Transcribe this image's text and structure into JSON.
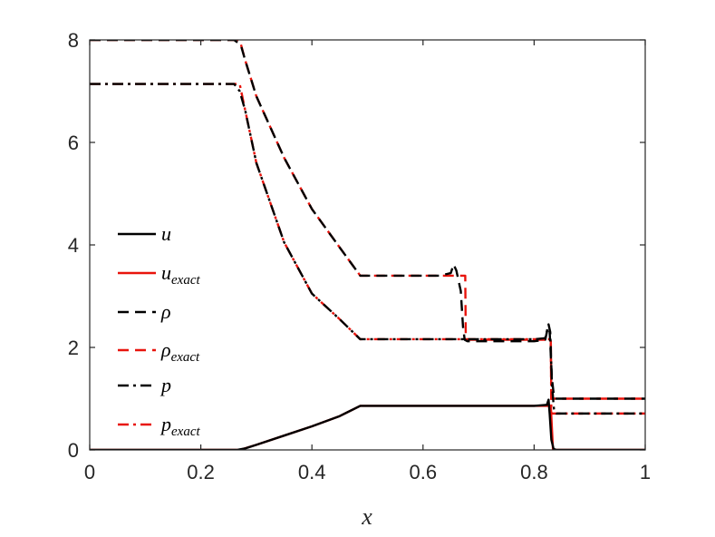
{
  "chart_data": {
    "type": "line",
    "title": "",
    "xlabel": "x",
    "ylabel": "",
    "xlim": [
      0,
      1
    ],
    "ylim": [
      0,
      8
    ],
    "xticks": [
      0,
      0.2,
      0.4,
      0.6,
      0.8,
      1
    ],
    "xtick_labels": [
      "0",
      "0.2",
      "0.4",
      "0.6",
      "0.8",
      "1"
    ],
    "yticks": [
      0,
      2,
      4,
      6,
      8
    ],
    "ytick_labels": [
      "0",
      "2",
      "4",
      "6",
      "8"
    ],
    "grid": false,
    "legend_position": "center-left",
    "series": [
      {
        "name": "u",
        "subscript": "",
        "color": "#000000",
        "dash": "solid",
        "x": [
          0,
          0.265,
          0.27,
          0.28,
          0.3,
          0.35,
          0.4,
          0.45,
          0.487,
          0.5,
          0.6,
          0.7,
          0.8,
          0.823,
          0.826,
          0.828,
          0.831,
          0.835,
          0.84,
          1
        ],
        "y": [
          0,
          0,
          0.01,
          0.03,
          0.1,
          0.28,
          0.46,
          0.66,
          0.86,
          0.86,
          0.86,
          0.86,
          0.86,
          0.88,
          0.98,
          0.7,
          0.2,
          0.02,
          0,
          0
        ]
      },
      {
        "name": "u",
        "subscript": "exact",
        "color": "#e8140c",
        "dash": "solid",
        "x": [
          0,
          0.27,
          0.3,
          0.35,
          0.4,
          0.45,
          0.487,
          0.6,
          0.7,
          0.8,
          0.83,
          0.834,
          1
        ],
        "y": [
          0,
          0,
          0.1,
          0.28,
          0.46,
          0.66,
          0.86,
          0.86,
          0.86,
          0.86,
          0.86,
          0,
          0
        ]
      },
      {
        "name": "ρ",
        "subscript": "",
        "color": "#000000",
        "dash": "dash",
        "x": [
          0,
          0.26,
          0.272,
          0.28,
          0.3,
          0.35,
          0.4,
          0.45,
          0.487,
          0.55,
          0.63,
          0.65,
          0.655,
          0.66,
          0.668,
          0.672,
          0.675,
          0.68,
          0.72,
          0.8,
          0.82,
          0.825,
          0.828,
          0.832,
          0.836,
          0.84,
          1
        ],
        "y": [
          8,
          8,
          7.9,
          7.6,
          6.9,
          5.7,
          4.7,
          3.95,
          3.4,
          3.4,
          3.4,
          3.45,
          3.62,
          3.5,
          3.1,
          2.4,
          2.15,
          2.12,
          2.12,
          2.12,
          2.15,
          2.4,
          2.3,
          1.4,
          1.02,
          1.0,
          1.0
        ]
      },
      {
        "name": "ρ",
        "subscript": "exact",
        "color": "#e8140c",
        "dash": "dash",
        "x": [
          0,
          0.27,
          0.28,
          0.3,
          0.35,
          0.4,
          0.45,
          0.487,
          0.6,
          0.676,
          0.677,
          0.8,
          0.83,
          0.831,
          1
        ],
        "y": [
          8,
          8,
          7.6,
          6.9,
          5.7,
          4.7,
          3.95,
          3.4,
          3.4,
          3.4,
          2.15,
          2.15,
          2.15,
          1.0,
          1.0
        ]
      },
      {
        "name": "p",
        "subscript": "",
        "color": "#000000",
        "dash": "dashdot",
        "x": [
          0,
          0.26,
          0.27,
          0.28,
          0.3,
          0.35,
          0.4,
          0.45,
          0.487,
          0.6,
          0.7,
          0.8,
          0.82,
          0.826,
          0.829,
          0.832,
          0.836,
          0.84,
          1
        ],
        "y": [
          7.14,
          7.14,
          7.0,
          6.62,
          5.6,
          4.05,
          3.05,
          2.55,
          2.16,
          2.16,
          2.16,
          2.16,
          2.18,
          2.45,
          2.3,
          1.3,
          0.75,
          0.71,
          0.71
        ]
      },
      {
        "name": "p",
        "subscript": "exact",
        "color": "#e8140c",
        "dash": "dashdot",
        "x": [
          0,
          0.27,
          0.28,
          0.3,
          0.35,
          0.4,
          0.45,
          0.487,
          0.6,
          0.7,
          0.8,
          0.83,
          0.831,
          1
        ],
        "y": [
          7.14,
          7.14,
          6.62,
          5.6,
          4.05,
          3.05,
          2.55,
          2.16,
          2.16,
          2.16,
          2.16,
          2.16,
          0.71,
          0.71
        ]
      }
    ]
  }
}
